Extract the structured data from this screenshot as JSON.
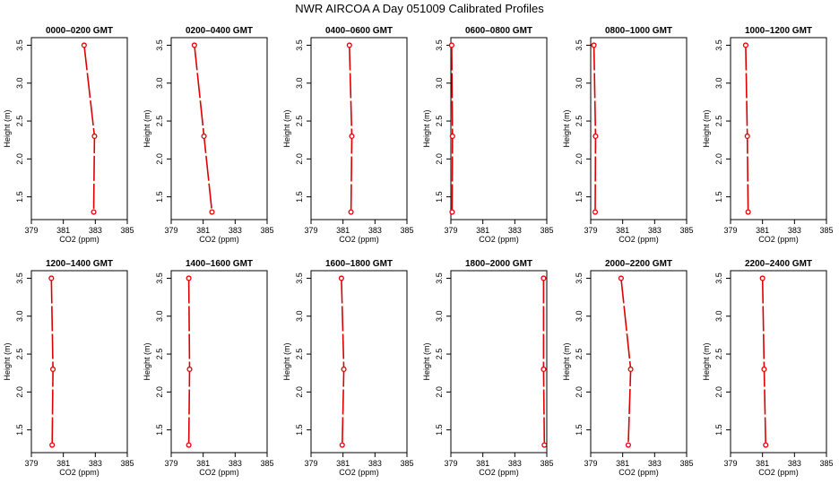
{
  "figure": {
    "title": "NWR AIRCOA A  Day 051009  Calibrated Profiles",
    "colors": {
      "profile": "#dd0000",
      "axis": "#000000"
    }
  },
  "chart_data": [
    {
      "type": "line",
      "title": "0000–0200 GMT",
      "xlabel": "CO2 (ppm)",
      "ylabel": "Height (m)",
      "xlim": [
        379,
        385
      ],
      "ylim": [
        1.2,
        3.6
      ],
      "xticks": [
        379,
        381,
        383,
        385
      ],
      "yticks": [
        1.5,
        2.0,
        2.5,
        3.0,
        3.5
      ],
      "x": [
        382.3,
        382.95,
        382.9
      ],
      "y": [
        3.5,
        2.3,
        1.3
      ]
    },
    {
      "type": "line",
      "title": "0200–0400 GMT",
      "xlabel": "CO2 (ppm)",
      "ylabel": "Height (m)",
      "xlim": [
        379,
        385
      ],
      "ylim": [
        1.2,
        3.6
      ],
      "xticks": [
        379,
        381,
        383,
        385
      ],
      "yticks": [
        1.5,
        2.0,
        2.5,
        3.0,
        3.5
      ],
      "x": [
        380.45,
        381.05,
        381.55
      ],
      "y": [
        3.5,
        2.3,
        1.3
      ]
    },
    {
      "type": "line",
      "title": "0400–0600 GMT",
      "xlabel": "CO2 (ppm)",
      "ylabel": "Height (m)",
      "xlim": [
        379,
        385
      ],
      "ylim": [
        1.2,
        3.6
      ],
      "xticks": [
        379,
        381,
        383,
        385
      ],
      "yticks": [
        1.5,
        2.0,
        2.5,
        3.0,
        3.5
      ],
      "x": [
        381.4,
        381.55,
        381.5
      ],
      "y": [
        3.5,
        2.3,
        1.3
      ]
    },
    {
      "type": "line",
      "title": "0600–0800 GMT",
      "xlabel": "CO2 (ppm)",
      "ylabel": "Height (m)",
      "xlim": [
        379,
        385
      ],
      "ylim": [
        1.2,
        3.6
      ],
      "xticks": [
        379,
        381,
        383,
        385
      ],
      "yticks": [
        1.5,
        2.0,
        2.5,
        3.0,
        3.5
      ],
      "x": [
        379.05,
        379.1,
        379.08
      ],
      "y": [
        3.5,
        2.3,
        1.3
      ]
    },
    {
      "type": "line",
      "title": "0800–1000 GMT",
      "xlabel": "CO2 (ppm)",
      "ylabel": "Height (m)",
      "xlim": [
        379,
        385
      ],
      "ylim": [
        1.2,
        3.6
      ],
      "xticks": [
        379,
        381,
        383,
        385
      ],
      "yticks": [
        1.5,
        2.0,
        2.5,
        3.0,
        3.5
      ],
      "x": [
        379.2,
        379.3,
        379.28
      ],
      "y": [
        3.5,
        2.3,
        1.3
      ]
    },
    {
      "type": "line",
      "title": "1000–1200 GMT",
      "xlabel": "CO2 (ppm)",
      "ylabel": "Height (m)",
      "xlim": [
        379,
        385
      ],
      "ylim": [
        1.2,
        3.6
      ],
      "xticks": [
        379,
        381,
        383,
        385
      ],
      "yticks": [
        1.5,
        2.0,
        2.5,
        3.0,
        3.5
      ],
      "x": [
        379.95,
        380.05,
        380.1
      ],
      "y": [
        3.5,
        2.3,
        1.3
      ]
    },
    {
      "type": "line",
      "title": "1200–1400 GMT",
      "xlabel": "CO2 (ppm)",
      "ylabel": "Height (m)",
      "xlim": [
        379,
        385
      ],
      "ylim": [
        1.2,
        3.6
      ],
      "xticks": [
        379,
        381,
        383,
        385
      ],
      "yticks": [
        1.5,
        2.0,
        2.5,
        3.0,
        3.5
      ],
      "x": [
        380.25,
        380.35,
        380.3
      ],
      "y": [
        3.5,
        2.3,
        1.3
      ]
    },
    {
      "type": "line",
      "title": "1400–1600 GMT",
      "xlabel": "CO2 (ppm)",
      "ylabel": "Height (m)",
      "xlim": [
        379,
        385
      ],
      "ylim": [
        1.2,
        3.6
      ],
      "xticks": [
        379,
        381,
        383,
        385
      ],
      "yticks": [
        1.5,
        2.0,
        2.5,
        3.0,
        3.5
      ],
      "x": [
        380.1,
        380.15,
        380.1
      ],
      "y": [
        3.5,
        2.3,
        1.3
      ]
    },
    {
      "type": "line",
      "title": "1600–1800 GMT",
      "xlabel": "CO2 (ppm)",
      "ylabel": "Height (m)",
      "xlim": [
        379,
        385
      ],
      "ylim": [
        1.2,
        3.6
      ],
      "xticks": [
        379,
        381,
        383,
        385
      ],
      "yticks": [
        1.5,
        2.0,
        2.5,
        3.0,
        3.5
      ],
      "x": [
        380.9,
        381.05,
        380.95
      ],
      "y": [
        3.5,
        2.3,
        1.3
      ]
    },
    {
      "type": "line",
      "title": "1800–2000 GMT",
      "xlabel": "CO2 (ppm)",
      "ylabel": "Height (m)",
      "xlim": [
        379,
        385
      ],
      "ylim": [
        1.2,
        3.6
      ],
      "xticks": [
        379,
        381,
        383,
        385
      ],
      "yticks": [
        1.5,
        2.0,
        2.5,
        3.0,
        3.5
      ],
      "x": [
        384.8,
        384.8,
        384.85
      ],
      "y": [
        3.5,
        2.3,
        1.3
      ]
    },
    {
      "type": "line",
      "title": "2000–2200 GMT",
      "xlabel": "CO2 (ppm)",
      "ylabel": "Height (m)",
      "xlim": [
        379,
        385
      ],
      "ylim": [
        1.2,
        3.6
      ],
      "xticks": [
        379,
        381,
        383,
        385
      ],
      "yticks": [
        1.5,
        2.0,
        2.5,
        3.0,
        3.5
      ],
      "x": [
        380.9,
        381.5,
        381.35
      ],
      "y": [
        3.5,
        2.3,
        1.3
      ]
    },
    {
      "type": "line",
      "title": "2200–2400 GMT",
      "xlabel": "CO2 (ppm)",
      "ylabel": "Height (m)",
      "xlim": [
        379,
        385
      ],
      "ylim": [
        1.2,
        3.6
      ],
      "xticks": [
        379,
        381,
        383,
        385
      ],
      "yticks": [
        1.5,
        2.0,
        2.5,
        3.0,
        3.5
      ],
      "x": [
        381.0,
        381.1,
        381.2
      ],
      "y": [
        3.5,
        2.3,
        1.3
      ]
    }
  ]
}
